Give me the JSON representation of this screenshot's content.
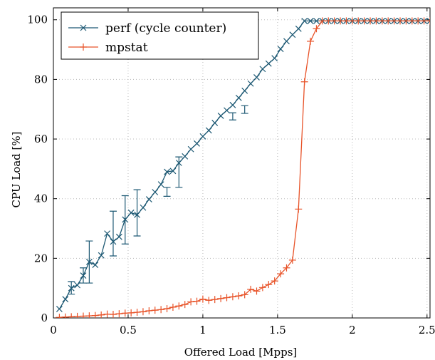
{
  "chart_data": {
    "type": "line",
    "xlabel": "Offered Load [Mpps]",
    "ylabel": "CPU Load [%]",
    "xlim": [
      0,
      2.52
    ],
    "ylim": [
      0,
      104
    ],
    "xticks": [
      0,
      0.5,
      1,
      1.5,
      2,
      2.5
    ],
    "xtick_labels": [
      "0",
      "0.5",
      "1",
      "1.5",
      "2",
      "2.5"
    ],
    "yticks": [
      0,
      20,
      40,
      60,
      80,
      100
    ],
    "ytick_labels": [
      "0",
      "20",
      "40",
      "60",
      "80",
      "100"
    ],
    "grid": "dotted",
    "legend_position": "top-left",
    "series": [
      {
        "name": "perf (cycle counter)",
        "color": "#1c5873",
        "marker": "x",
        "x": [
          0.04,
          0.08,
          0.12,
          0.16,
          0.2,
          0.24,
          0.28,
          0.32,
          0.36,
          0.4,
          0.44,
          0.48,
          0.52,
          0.56,
          0.6,
          0.64,
          0.68,
          0.72,
          0.76,
          0.8,
          0.84,
          0.88,
          0.92,
          0.96,
          1.0,
          1.04,
          1.08,
          1.12,
          1.16,
          1.2,
          1.24,
          1.28,
          1.32,
          1.36,
          1.4,
          1.44,
          1.48,
          1.52,
          1.56,
          1.6,
          1.64,
          1.68,
          1.72,
          1.76,
          1.8,
          1.84,
          1.88,
          1.92,
          1.96,
          2.0,
          2.04,
          2.08,
          2.12,
          2.16,
          2.2,
          2.24,
          2.28,
          2.32,
          2.36,
          2.4,
          2.44,
          2.48,
          2.52
        ],
        "y": [
          3,
          6.3,
          10,
          11,
          14.2,
          18.8,
          17.8,
          21,
          28.3,
          25.6,
          27.2,
          33,
          35.3,
          34.6,
          37,
          39.8,
          42.2,
          44.8,
          49,
          49.3,
          52,
          54.2,
          56.6,
          58.5,
          60.9,
          62.9,
          65.4,
          67.8,
          69.6,
          71.4,
          73.8,
          76.2,
          78.6,
          80.7,
          83.5,
          85.3,
          87.1,
          90.2,
          92.8,
          95,
          97,
          99.6,
          99.6,
          99.6,
          99.6,
          99.6,
          99.6,
          99.6,
          99.6,
          99.6,
          99.6,
          99.6,
          99.6,
          99.6,
          99.6,
          99.6,
          99.6,
          99.6,
          99.6,
          99.6,
          99.6,
          99.6,
          99.6
        ],
        "error_bars": [
          {
            "x": 0.12,
            "low": 8,
            "high": 12.2
          },
          {
            "x": 0.2,
            "low": 11.7,
            "high": 16.8
          },
          {
            "x": 0.24,
            "low": 11.7,
            "high": 25.8
          },
          {
            "x": 0.4,
            "low": 20.8,
            "high": 35.8
          },
          {
            "x": 0.48,
            "low": 24.8,
            "high": 41
          },
          {
            "x": 0.56,
            "low": 27.5,
            "high": 43
          },
          {
            "x": 0.76,
            "low": 40.8,
            "high": 43.8
          },
          {
            "x": 0.84,
            "low": 43.8,
            "high": 54
          },
          {
            "x": 1.2,
            "low": 66.4,
            "high": 68.8
          },
          {
            "x": 1.28,
            "low": 68.6,
            "high": 71.2
          }
        ]
      },
      {
        "name": "mpstat",
        "color": "#e8542a",
        "marker": "+",
        "x": [
          0.04,
          0.08,
          0.12,
          0.16,
          0.2,
          0.24,
          0.28,
          0.32,
          0.36,
          0.4,
          0.44,
          0.48,
          0.52,
          0.56,
          0.6,
          0.64,
          0.68,
          0.72,
          0.76,
          0.8,
          0.84,
          0.88,
          0.92,
          0.96,
          1.0,
          1.04,
          1.08,
          1.12,
          1.16,
          1.2,
          1.24,
          1.28,
          1.32,
          1.36,
          1.4,
          1.44,
          1.48,
          1.52,
          1.56,
          1.6,
          1.64,
          1.68,
          1.72,
          1.76,
          1.8,
          1.84,
          1.88,
          1.92,
          1.96,
          2.0,
          2.04,
          2.08,
          2.12,
          2.16,
          2.2,
          2.24,
          2.28,
          2.32,
          2.36,
          2.4,
          2.44,
          2.48,
          2.52
        ],
        "y": [
          0.2,
          0.3,
          0.4,
          0.5,
          0.6,
          0.7,
          0.8,
          1.0,
          1.3,
          1.2,
          1.4,
          1.6,
          1.7,
          1.9,
          2.1,
          2.4,
          2.6,
          2.8,
          3.1,
          3.6,
          4.0,
          4.5,
          5.4,
          5.6,
          6.3,
          5.9,
          6.2,
          6.5,
          6.8,
          7.1,
          7.4,
          7.8,
          9.6,
          9.0,
          10.2,
          11.2,
          12.4,
          14.8,
          16.8,
          19.4,
          36.5,
          79.2,
          92.8,
          97,
          99.6,
          99.6,
          99.6,
          99.6,
          99.6,
          99.6,
          99.6,
          99.6,
          99.6,
          99.6,
          99.6,
          99.6,
          99.6,
          99.6,
          99.6,
          99.6,
          99.6,
          99.6,
          99.6
        ]
      }
    ]
  }
}
